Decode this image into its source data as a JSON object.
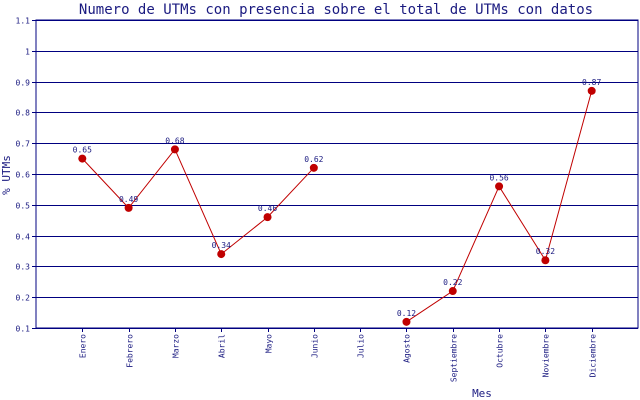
{
  "chart_data": {
    "type": "line",
    "title": "Numero de UTMs con presencia sobre el total de UTMs con datos",
    "xlabel": "Mes",
    "ylabel": "% UTMs",
    "ylim": [
      0.1,
      1.1
    ],
    "yticks": [
      "0.1",
      "0.2",
      "0.3",
      "0.4",
      "0.5",
      "0.6",
      "0.7",
      "0.8",
      "0.9",
      "1",
      "1.1"
    ],
    "grid": true,
    "categories": [
      "Enero",
      "Febrero",
      "Marzo",
      "Abril",
      "Mayo",
      "Junio",
      "Julio",
      "Agosto",
      "Septiembre",
      "Octubre",
      "Noviembre",
      "Diciembre"
    ],
    "series": [
      {
        "values": [
          0.65,
          0.49,
          0.68,
          0.34,
          0.46,
          0.62,
          null,
          0.12,
          0.22,
          0.56,
          0.32,
          0.87
        ],
        "labels": [
          "0.65",
          "0.49",
          "0.68",
          "0.34",
          "0.46",
          "0.62",
          "",
          "0.12",
          "0.22",
          "0.56",
          "0.32",
          "0.87"
        ]
      }
    ],
    "colors": {
      "line": "#c00000",
      "marker": "#c00000",
      "grid": "#000080",
      "text": "#1a1a80"
    }
  }
}
